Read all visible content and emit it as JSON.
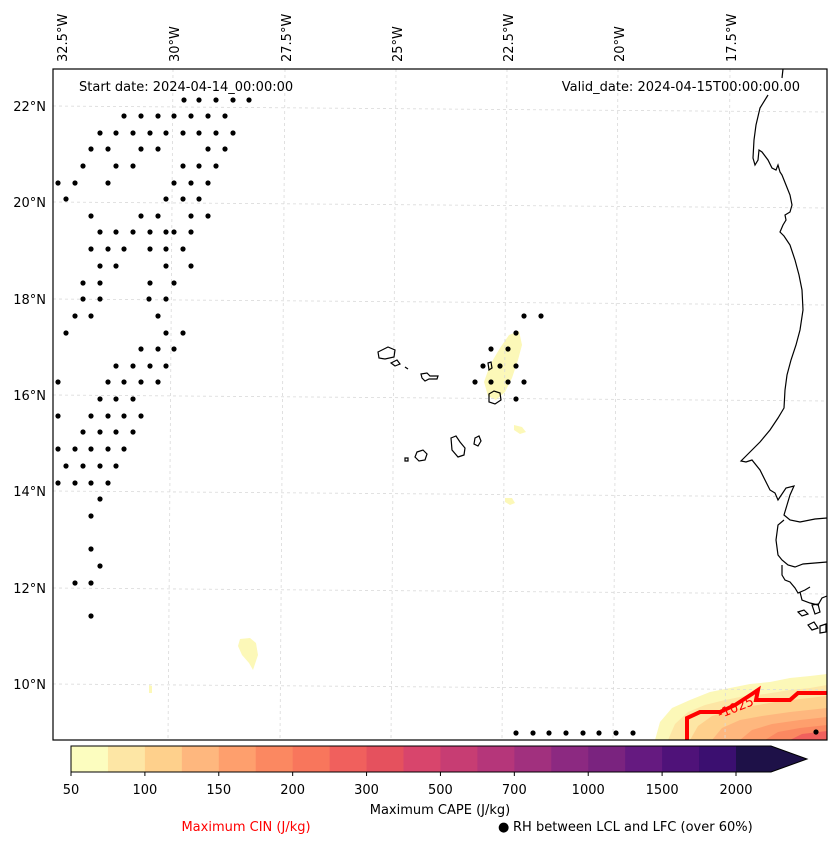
{
  "map": {
    "projection_labels": {
      "longitudes": [
        "32.5°W",
        "30°W",
        "27.5°W",
        "25°W",
        "22.5°W",
        "20°W",
        "17.5°W"
      ],
      "latitudes": [
        "22°N",
        "20°N",
        "18°N",
        "16°N",
        "14°N",
        "12°N",
        "10°N"
      ]
    },
    "annotations": {
      "start_date": "Start date: 2024-04-14_00:00:00",
      "valid_date": "Valid_date: 2024-04-15T00:00:00.00"
    },
    "cin_contour_label": "-1025",
    "cin_contour_color": "#ff0000",
    "rh_marker_color": "#000000",
    "coastline_color": "#000000",
    "gridline_color": "#cccccc"
  },
  "colorbar": {
    "title": "Maximum CAPE (J/kg)",
    "extend": "max",
    "levels": [
      50,
      75,
      100,
      125,
      150,
      175,
      200,
      250,
      300,
      400,
      500,
      600,
      700,
      850,
      1000,
      1250,
      1500,
      1750,
      2000
    ],
    "tick_labels": [
      "50",
      "100",
      "150",
      "200",
      "300",
      "500",
      "700",
      "1000",
      "1500",
      "2000"
    ],
    "colors": [
      "#fcfdbf",
      "#fde6a5",
      "#fed08c",
      "#feb77e",
      "#fe9f6d",
      "#fb8861",
      "#f8765c",
      "#f0605d",
      "#e5515e",
      "#d8456c",
      "#c73d73",
      "#b5367a",
      "#a1307e",
      "#8c2981",
      "#7a237f",
      "#651a80",
      "#4f1279",
      "#3b0f70",
      "#231151",
      "#1e1148"
    ]
  },
  "legend": {
    "cin_label": "Maximum CIN (J/kg)",
    "rh_label": "RH between LCL and LFC (over 60%)",
    "rh_marker": "●"
  }
}
